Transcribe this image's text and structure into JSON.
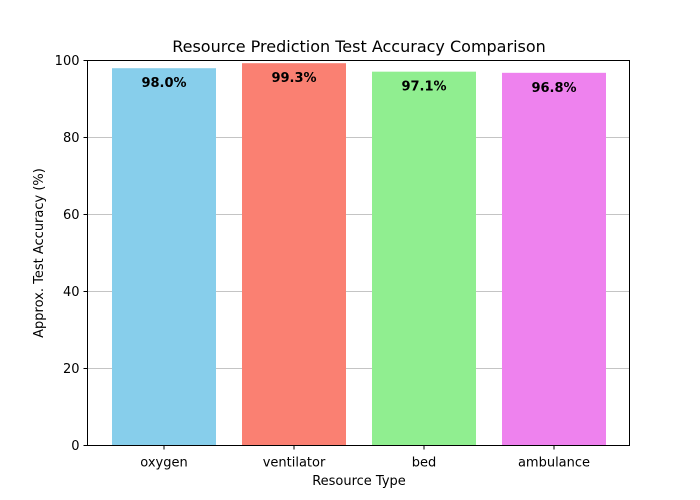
{
  "chart_data": {
    "type": "bar",
    "title": "Resource Prediction Test Accuracy Comparison",
    "xlabel": "Resource Type",
    "ylabel": "Approx. Test Accuracy (%)",
    "categories": [
      "oxygen",
      "ventilator",
      "bed",
      "ambulance"
    ],
    "values": [
      98.0,
      99.3,
      97.1,
      96.8
    ],
    "value_labels": [
      "98.0%",
      "99.3%",
      "97.1%",
      "96.8%"
    ],
    "colors": [
      "#87ceeb",
      "#fa8072",
      "#90ee90",
      "#ee82ee"
    ],
    "ylim": [
      0,
      100
    ],
    "yticks": [
      0,
      20,
      40,
      60,
      80,
      100
    ],
    "ytick_labels": [
      "0",
      "20",
      "40",
      "60",
      "80",
      "100"
    ],
    "grid": "y-axis major gridlines",
    "legend": "none"
  }
}
